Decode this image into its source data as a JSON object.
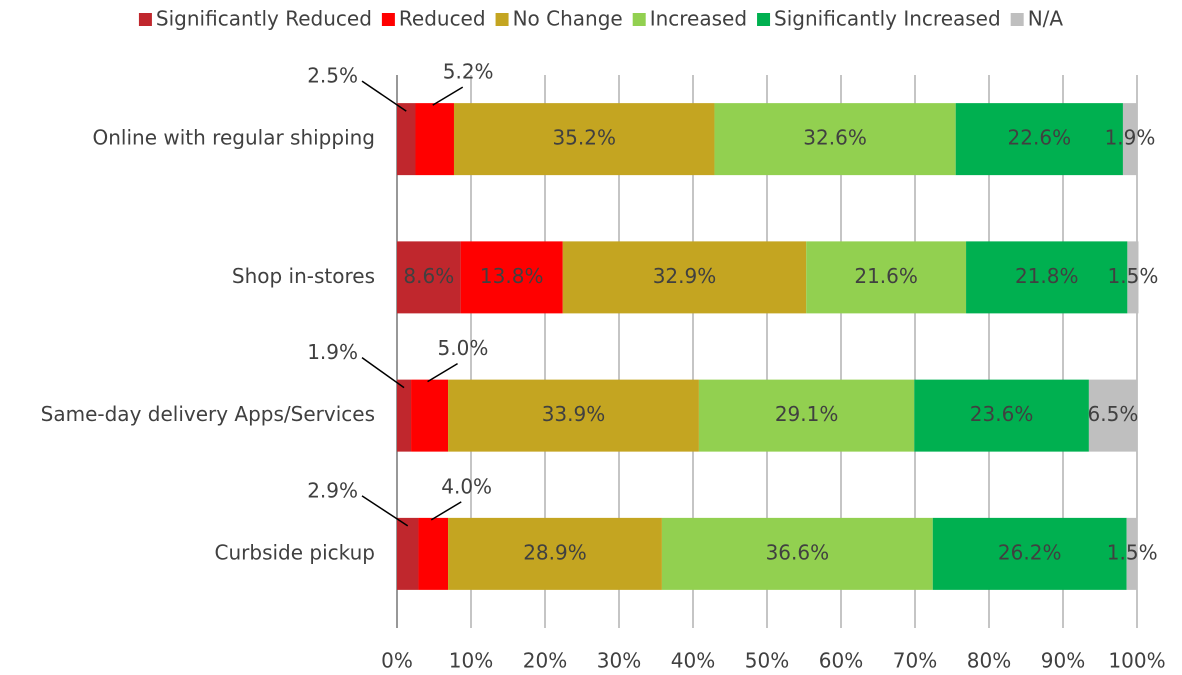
{
  "chart_data": {
    "type": "stacked_barh",
    "categories": [
      "Online with regular shipping",
      "Shop in-stores",
      "Same-day delivery Apps/Services",
      "Curbside pickup"
    ],
    "series": [
      {
        "name": "Significantly Reduced",
        "color": "#c0272d",
        "values": [
          2.5,
          8.6,
          1.9,
          2.9
        ],
        "value_labels": [
          "2.5%",
          "8.6%",
          "1.9%",
          "2.9%"
        ]
      },
      {
        "name": "Reduced",
        "color": "#ff0000",
        "values": [
          5.2,
          13.8,
          5.0,
          4.0
        ],
        "value_labels": [
          "5.2%",
          "13.8%",
          "5.0%",
          "4.0%"
        ]
      },
      {
        "name": "No Change",
        "color": "#c4a521",
        "values": [
          35.2,
          32.9,
          33.9,
          28.9
        ],
        "value_labels": [
          "35.2%",
          "32.9%",
          "33.9%",
          "28.9%"
        ]
      },
      {
        "name": "Increased",
        "color": "#92d050",
        "values": [
          32.6,
          21.6,
          29.1,
          36.6
        ],
        "value_labels": [
          "32.6%",
          "21.6%",
          "29.1%",
          "36.6%"
        ]
      },
      {
        "name": "Significantly Increased",
        "color": "#00b050",
        "values": [
          22.6,
          21.8,
          23.6,
          26.2
        ],
        "value_labels": [
          "22.6%",
          "21.8%",
          "23.6%",
          "26.2%"
        ]
      },
      {
        "name": "N/A",
        "color": "#bfbfbf",
        "values": [
          1.9,
          1.5,
          6.5,
          1.5
        ],
        "value_labels": [
          "1.9%",
          "1.5%",
          "6.5%",
          "1.5%"
        ]
      }
    ],
    "xlim": [
      0,
      100
    ],
    "xticks": [
      {
        "value": 0,
        "label": "0%"
      },
      {
        "value": 10,
        "label": "10%"
      },
      {
        "value": 20,
        "label": "20%"
      },
      {
        "value": 30,
        "label": "30%"
      },
      {
        "value": 40,
        "label": "40%"
      },
      {
        "value": 50,
        "label": "50%"
      },
      {
        "value": 60,
        "label": "60%"
      },
      {
        "value": 70,
        "label": "70%"
      },
      {
        "value": 80,
        "label": "80%"
      },
      {
        "value": 90,
        "label": "90%"
      },
      {
        "value": 100,
        "label": "100%"
      }
    ],
    "grid": true,
    "legend": "top"
  }
}
